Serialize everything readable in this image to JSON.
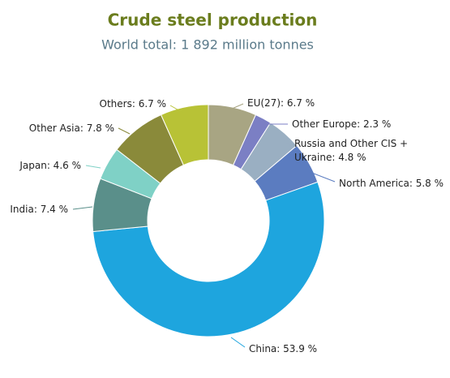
{
  "chart_data": {
    "type": "donut",
    "title": "Crude steel production",
    "subtitle": "World total: 1 892 million tonnes",
    "categories": [
      "EU(27)",
      "Other Europe",
      "Russia and Other CIS + Ukraine",
      "North America",
      "China",
      "India",
      "Japan",
      "Other Asia",
      "Others"
    ],
    "values": [
      6.7,
      2.3,
      4.8,
      5.8,
      53.9,
      7.4,
      4.6,
      7.8,
      6.7
    ],
    "value_labels": [
      "EU(27): 6.7 %",
      "Other Europe: 2.3 %",
      "Russia and Other CIS + Ukraine: 4.8 %",
      "North America: 5.8 %",
      "China: 53.9 %",
      "India: 7.4 %",
      "Japan: 4.6 %",
      "Other Asia: 7.8 %",
      "Others: 6.7 %"
    ],
    "colors": [
      "#a8a583",
      "#7b7fc4",
      "#9aafc2",
      "#5b7cc0",
      "#1ea5de",
      "#5a8f8a",
      "#7fd1c6",
      "#8a8a3a",
      "#b8c236"
    ]
  }
}
